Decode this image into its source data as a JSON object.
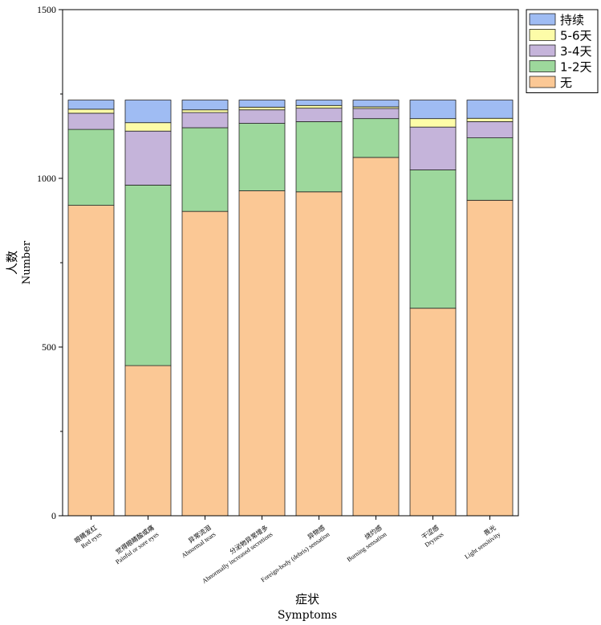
{
  "chart_data": {
    "type": "bar",
    "stacked": true,
    "title": "",
    "xlabel": "症状",
    "xlabel_en": "Symptoms",
    "ylabel": "人数",
    "ylabel_en": "Number",
    "ylim": [
      0,
      1500
    ],
    "yticks": [
      0,
      500,
      1000,
      1500
    ],
    "categories": [
      {
        "zh": "眼睛发红",
        "en": "Red eyes"
      },
      {
        "zh": "觉得眼睛酸或痛",
        "en": "Painful or sore eyes"
      },
      {
        "zh": "异常流泪",
        "en": "Abnormal tears"
      },
      {
        "zh": "分泌物异常增多",
        "en": "Abnormally increased secretions"
      },
      {
        "zh": "异物感",
        "en": "Foreign-body (debris) sensation"
      },
      {
        "zh": "烧灼感",
        "en": "Burning sensation"
      },
      {
        "zh": "干涩感",
        "en": "Dryness"
      },
      {
        "zh": "畏光",
        "en": "Light sensitivity"
      }
    ],
    "series": [
      {
        "name": "无",
        "color": "#fbc895",
        "values": [
          920,
          445,
          902,
          963,
          960,
          1062,
          615,
          935
        ]
      },
      {
        "name": "1-2天",
        "color": "#9dd89c",
        "values": [
          225,
          535,
          248,
          200,
          208,
          115,
          410,
          185
        ]
      },
      {
        "name": "3-4天",
        "color": "#c5b4da",
        "values": [
          48,
          160,
          45,
          40,
          40,
          30,
          127,
          48
        ]
      },
      {
        "name": "5-6天",
        "color": "#fdfca8",
        "values": [
          12,
          25,
          8,
          8,
          8,
          5,
          25,
          10
        ]
      },
      {
        "name": "持续",
        "color": "#9fbcf3",
        "values": [
          27,
          67,
          29,
          21,
          16,
          20,
          55,
          54
        ]
      }
    ],
    "legend_position": "top-right",
    "grid": false
  }
}
